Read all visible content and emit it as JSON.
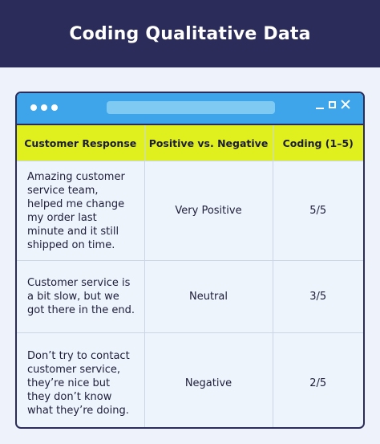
{
  "header": {
    "title": "Coding Qualitative Data"
  },
  "window": {
    "titlebar_color": "#3ea5ea",
    "header_color": "#dff01e"
  },
  "table": {
    "columns": [
      "Customer Response",
      "Positive vs. Negative",
      "Coding (1–5)"
    ],
    "rows": [
      {
        "response": "Amazing customer service team, helped me change my order last minute and it still shipped on time.",
        "sentiment": "Very Positive",
        "coding": "5/5"
      },
      {
        "response": "Customer service is a bit slow, but we got there in the end.",
        "sentiment": "Neutral",
        "coding": "3/5"
      },
      {
        "response": "Don’t try to contact customer service, they’re nice but they don’t know what they’re doing.",
        "sentiment": "Negative",
        "coding": "2/5"
      }
    ]
  }
}
